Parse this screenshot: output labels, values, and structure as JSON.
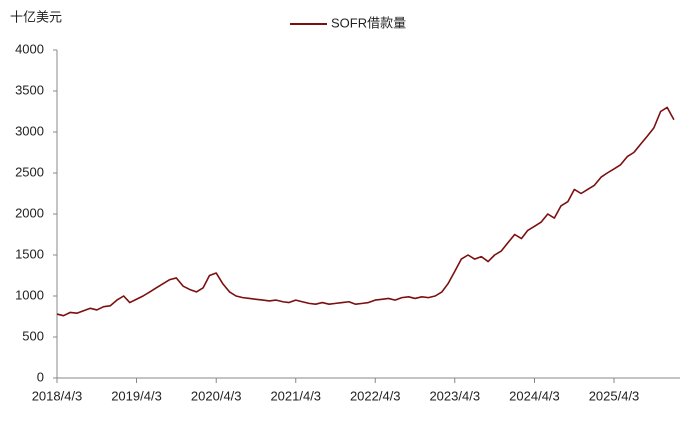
{
  "chart_data": {
    "type": "line",
    "y_label": "十亿美元",
    "legend_position": "top",
    "x": [
      "2018/4/3",
      "2018/5/3",
      "2018/6/3",
      "2018/7/3",
      "2018/8/3",
      "2018/9/3",
      "2018/10/3",
      "2018/11/3",
      "2018/12/3",
      "2019/1/3",
      "2019/2/3",
      "2019/3/3",
      "2019/4/3",
      "2019/5/3",
      "2019/6/3",
      "2019/7/3",
      "2019/8/3",
      "2019/9/3",
      "2019/10/3",
      "2019/11/3",
      "2019/12/3",
      "2020/1/3",
      "2020/2/3",
      "2020/3/3",
      "2020/4/3",
      "2020/5/3",
      "2020/6/3",
      "2020/7/3",
      "2020/8/3",
      "2020/9/3",
      "2020/10/3",
      "2020/11/3",
      "2020/12/3",
      "2021/1/3",
      "2021/2/3",
      "2021/3/3",
      "2021/4/3",
      "2021/5/3",
      "2021/6/3",
      "2021/7/3",
      "2021/8/3",
      "2021/9/3",
      "2021/10/3",
      "2021/11/3",
      "2021/12/3",
      "2022/1/3",
      "2022/2/3",
      "2022/3/3",
      "2022/4/3",
      "2022/5/3",
      "2022/6/3",
      "2022/7/3",
      "2022/8/3",
      "2022/9/3",
      "2022/10/3",
      "2022/11/3",
      "2022/12/3",
      "2023/1/3",
      "2023/2/3",
      "2023/3/3",
      "2023/4/3",
      "2023/5/3",
      "2023/6/3",
      "2023/7/3",
      "2023/8/3",
      "2023/9/3",
      "2023/10/3",
      "2023/11/3",
      "2023/12/3",
      "2024/1/3",
      "2024/2/3",
      "2024/3/3",
      "2024/4/3",
      "2024/5/3",
      "2024/6/3",
      "2024/7/3",
      "2024/8/3",
      "2024/9/3",
      "2024/10/3",
      "2024/11/3",
      "2024/12/3",
      "2025/1/3",
      "2025/2/3",
      "2025/3/3",
      "2025/4/3",
      "2025/5/3",
      "2025/6/3",
      "2025/7/3",
      "2025/8/3",
      "2025/9/3",
      "2025/10/3",
      "2025/11/3",
      "2025/12/3",
      "2026/1/3"
    ],
    "series": [
      {
        "name": "SOFR借款量",
        "color": "#7b1010",
        "values": [
          780,
          760,
          800,
          790,
          820,
          850,
          830,
          870,
          880,
          950,
          1000,
          920,
          960,
          1000,
          1050,
          1100,
          1150,
          1200,
          1220,
          1120,
          1080,
          1050,
          1100,
          1250,
          1280,
          1150,
          1050,
          1000,
          980,
          970,
          960,
          950,
          940,
          950,
          930,
          920,
          950,
          930,
          910,
          900,
          920,
          900,
          910,
          920,
          930,
          900,
          910,
          920,
          950,
          960,
          970,
          950,
          980,
          990,
          970,
          990,
          980,
          1000,
          1050,
          1150,
          1300,
          1450,
          1500,
          1450,
          1480,
          1420,
          1500,
          1550,
          1650,
          1750,
          1700,
          1800,
          1850,
          1900,
          2000,
          1950,
          2100,
          2150,
          2300,
          2250,
          2300,
          2350,
          2450,
          2500,
          2550,
          2600,
          2700,
          2750,
          2850,
          2950,
          3050,
          3250,
          3300,
          3150
        ]
      }
    ],
    "xlim": [
      "2018/4/3",
      "2026/1/31"
    ],
    "xticks": [
      "2018/4/3",
      "2019/4/3",
      "2020/4/3",
      "2021/4/3",
      "2022/4/3",
      "2023/4/3",
      "2024/4/3",
      "2025/4/3"
    ],
    "ylim": [
      0,
      4000
    ],
    "yticks": [
      0,
      500,
      1000,
      1500,
      2000,
      2500,
      3000,
      3500,
      4000
    ],
    "grid": false
  }
}
